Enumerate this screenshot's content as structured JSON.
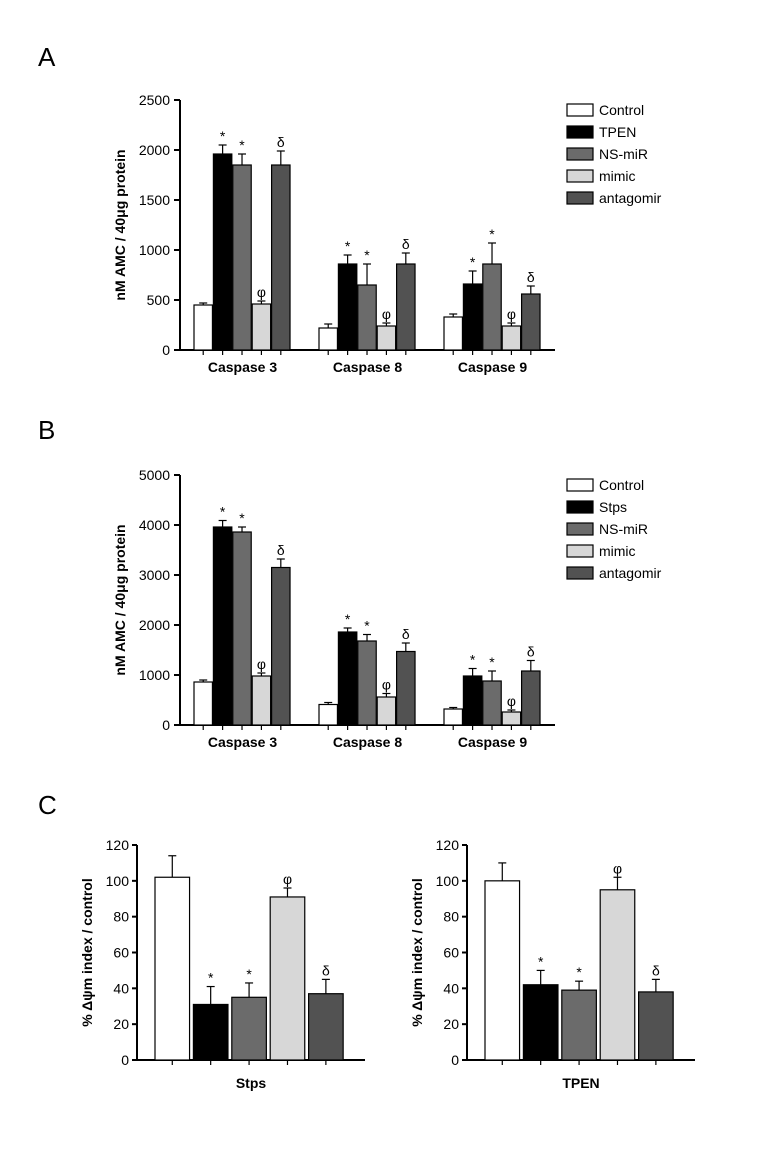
{
  "panelA": {
    "label": "A",
    "type": "grouped-bar",
    "ylabel": "nM AMC / 40μg protein",
    "ylim": [
      0,
      2500
    ],
    "yticks": [
      0,
      500,
      1000,
      1500,
      2000,
      2500
    ],
    "groups": [
      "Caspase 3",
      "Caspase 8",
      "Caspase 9"
    ],
    "series": [
      {
        "name": "Control",
        "color": "#ffffff",
        "stroke": "#000000"
      },
      {
        "name": "TPEN",
        "color": "#000000",
        "stroke": "#000000"
      },
      {
        "name": "NS-miR",
        "color": "#6b6b6b",
        "stroke": "#000000"
      },
      {
        "name": "mimic",
        "color": "#d7d7d7",
        "stroke": "#000000"
      },
      {
        "name": "antagomir",
        "color": "#525252",
        "stroke": "#000000"
      }
    ],
    "values": [
      [
        450,
        1960,
        1850,
        460,
        1850
      ],
      [
        220,
        860,
        650,
        240,
        860
      ],
      [
        330,
        660,
        860,
        240,
        560
      ]
    ],
    "errors": [
      [
        20,
        90,
        110,
        30,
        140
      ],
      [
        40,
        90,
        210,
        30,
        110
      ],
      [
        30,
        130,
        210,
        30,
        80
      ]
    ],
    "annotations": [
      [
        "",
        "*",
        "*",
        "φ",
        "δ"
      ],
      [
        "",
        "*",
        "*",
        "φ",
        "δ"
      ],
      [
        "",
        "*",
        "*",
        "φ",
        "δ"
      ]
    ],
    "axis_color": "#000000",
    "label_fontsize": 14,
    "tick_fontsize": 14,
    "legend_fontsize": 14,
    "annot_fontsize": 14
  },
  "panelB": {
    "label": "B",
    "type": "grouped-bar",
    "ylabel": "nM AMC / 40μg protein",
    "ylim": [
      0,
      5000
    ],
    "yticks": [
      0,
      1000,
      2000,
      3000,
      4000,
      5000
    ],
    "groups": [
      "Caspase 3",
      "Caspase 8",
      "Caspase 9"
    ],
    "series": [
      {
        "name": "Control",
        "color": "#ffffff",
        "stroke": "#000000"
      },
      {
        "name": "Stps",
        "color": "#000000",
        "stroke": "#000000"
      },
      {
        "name": "NS-miR",
        "color": "#6b6b6b",
        "stroke": "#000000"
      },
      {
        "name": "mimic",
        "color": "#d7d7d7",
        "stroke": "#000000"
      },
      {
        "name": "antagomir",
        "color": "#525252",
        "stroke": "#000000"
      }
    ],
    "values": [
      [
        860,
        3960,
        3860,
        980,
        3150
      ],
      [
        410,
        1860,
        1680,
        560,
        1470
      ],
      [
        320,
        980,
        880,
        260,
        1080
      ]
    ],
    "errors": [
      [
        40,
        130,
        100,
        60,
        170
      ],
      [
        40,
        80,
        130,
        70,
        170
      ],
      [
        30,
        150,
        200,
        40,
        210
      ]
    ],
    "annotations": [
      [
        "",
        "*",
        "*",
        "φ",
        "δ"
      ],
      [
        "",
        "*",
        "*",
        "φ",
        "δ"
      ],
      [
        "",
        "*",
        "*",
        "φ",
        "δ"
      ]
    ],
    "axis_color": "#000000",
    "label_fontsize": 14,
    "tick_fontsize": 14,
    "legend_fontsize": 14,
    "annot_fontsize": 14
  },
  "panelC": {
    "label": "C",
    "type": "bar-pair",
    "ylabel": "% Δψm index / control",
    "ylim": [
      0,
      120
    ],
    "yticks": [
      0,
      20,
      40,
      60,
      80,
      100,
      120
    ],
    "series_colors": [
      {
        "color": "#ffffff",
        "stroke": "#000000"
      },
      {
        "color": "#000000",
        "stroke": "#000000"
      },
      {
        "color": "#6b6b6b",
        "stroke": "#000000"
      },
      {
        "color": "#d7d7d7",
        "stroke": "#000000"
      },
      {
        "color": "#525252",
        "stroke": "#000000"
      }
    ],
    "charts": [
      {
        "xlabel": "Stps",
        "values": [
          102,
          31,
          35,
          91,
          37
        ],
        "errors": [
          12,
          10,
          8,
          5,
          8
        ],
        "annotations": [
          "",
          "*",
          "*",
          "φ",
          "δ"
        ]
      },
      {
        "xlabel": "TPEN",
        "values": [
          100,
          42,
          39,
          95,
          38
        ],
        "errors": [
          10,
          8,
          5,
          7,
          7
        ],
        "annotations": [
          "",
          "*",
          "*",
          "φ",
          "δ"
        ]
      }
    ],
    "axis_color": "#000000",
    "label_fontsize": 14,
    "tick_fontsize": 14,
    "annot_fontsize": 14
  }
}
